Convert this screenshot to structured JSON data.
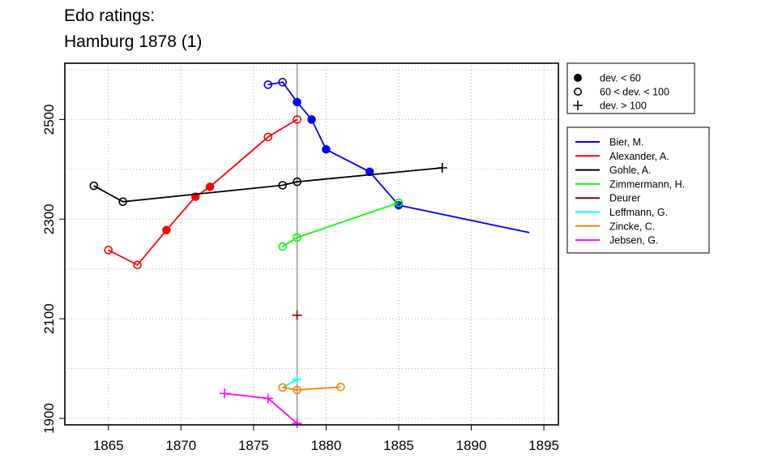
{
  "chart_data": {
    "type": "line",
    "title_lines": [
      "Edo ratings:",
      "Hamburg 1878 (1)"
    ],
    "xlim": [
      1862,
      1896
    ],
    "ylim": [
      1887,
      2613
    ],
    "x_ticks": [
      1865,
      1870,
      1875,
      1880,
      1885,
      1890,
      1895
    ],
    "y_ticks": [
      1900,
      2100,
      2300,
      2500
    ],
    "grid": true,
    "reference_x": 1878,
    "marker_legend": [
      {
        "marker": "filled",
        "label": "dev. < 60"
      },
      {
        "marker": "open",
        "label": "60 < dev. < 100"
      },
      {
        "marker": "plus",
        "label": "dev. > 100"
      }
    ],
    "series": [
      {
        "name": "Bier, M.",
        "color": "#0000ff",
        "points": [
          {
            "x": 1876,
            "y": 2570,
            "m": "open"
          },
          {
            "x": 1877,
            "y": 2575,
            "m": "open"
          },
          {
            "x": 1878,
            "y": 2535,
            "m": "filled"
          },
          {
            "x": 1879,
            "y": 2500,
            "m": "filled"
          },
          {
            "x": 1880,
            "y": 2440,
            "m": "filled"
          },
          {
            "x": 1883,
            "y": 2395,
            "m": "filled"
          },
          {
            "x": 1885,
            "y": 2328,
            "m": "filled"
          },
          {
            "x": 1894,
            "y": 2273,
            "m": "none"
          }
        ]
      },
      {
        "name": "Alexander, A.",
        "color": "#ff0000",
        "points": [
          {
            "x": 1865,
            "y": 2238,
            "m": "open"
          },
          {
            "x": 1867,
            "y": 2208,
            "m": "open"
          },
          {
            "x": 1869,
            "y": 2278,
            "m": "filled"
          },
          {
            "x": 1871,
            "y": 2345,
            "m": "filled"
          },
          {
            "x": 1872,
            "y": 2365,
            "m": "filled"
          },
          {
            "x": 1876,
            "y": 2465,
            "m": "open"
          },
          {
            "x": 1878,
            "y": 2500,
            "m": "open"
          }
        ]
      },
      {
        "name": "Gohle, A.",
        "color": "#000000",
        "points": [
          {
            "x": 1864,
            "y": 2367,
            "m": "open"
          },
          {
            "x": 1866,
            "y": 2335,
            "m": "open"
          },
          {
            "x": 1877,
            "y": 2368,
            "m": "open"
          },
          {
            "x": 1878,
            "y": 2375,
            "m": "open"
          },
          {
            "x": 1888,
            "y": 2403,
            "m": "plus"
          }
        ]
      },
      {
        "name": "Zimmermann, H.",
        "color": "#00ff00",
        "points": [
          {
            "x": 1877,
            "y": 2245,
            "m": "open"
          },
          {
            "x": 1878,
            "y": 2263,
            "m": "open"
          },
          {
            "x": 1885,
            "y": 2333,
            "m": "open"
          }
        ]
      },
      {
        "name": "Deurer",
        "color": "#8b0000",
        "points": [
          {
            "x": 1878,
            "y": 2107,
            "m": "plus"
          }
        ]
      },
      {
        "name": "Leffmann, G.",
        "color": "#00ffff",
        "points": [
          {
            "x": 1877,
            "y": 1962,
            "m": "none"
          },
          {
            "x": 1878,
            "y": 1978,
            "m": "plus"
          }
        ]
      },
      {
        "name": "Zincke, C.",
        "color": "#ff7f00",
        "points": [
          {
            "x": 1877,
            "y": 1962,
            "m": "open"
          },
          {
            "x": 1878,
            "y": 1957,
            "m": "open"
          },
          {
            "x": 1881,
            "y": 1963,
            "m": "open"
          }
        ]
      },
      {
        "name": "Jebsen, G.",
        "color": "#ff00ff",
        "points": [
          {
            "x": 1873,
            "y": 1950,
            "m": "plus"
          },
          {
            "x": 1876,
            "y": 1940,
            "m": "plus"
          },
          {
            "x": 1878,
            "y": 1890,
            "m": "plus"
          }
        ]
      }
    ]
  }
}
